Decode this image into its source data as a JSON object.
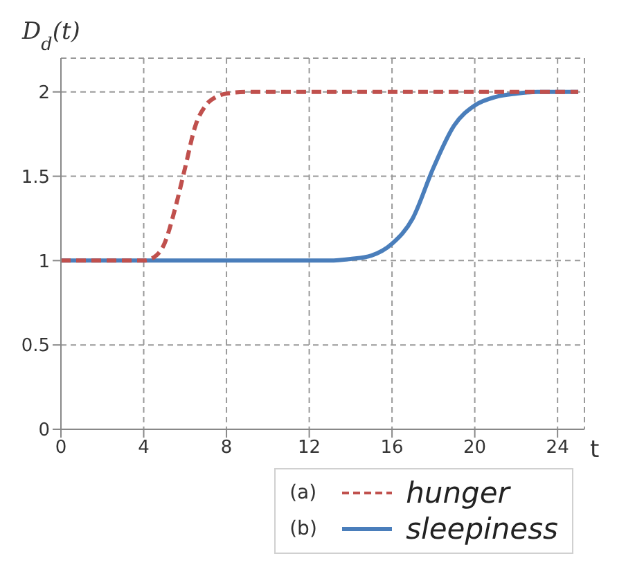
{
  "chart_data": {
    "type": "line",
    "xlabel": "t",
    "ylabel": "D$_{d}$(t)",
    "xlim": [
      0,
      25.3
    ],
    "xticks": [
      0,
      4,
      8,
      12,
      16,
      20,
      24
    ],
    "ylim": [
      0,
      2.2
    ],
    "yticks": [
      0,
      0.5,
      1,
      1.5,
      2
    ],
    "grid": true,
    "annotations": [
      "(a)",
      "(b)"
    ],
    "legend": "bottom right",
    "marker": "none",
    "series": [
      {
        "name": "hunger",
        "color": "#c0504d",
        "line_style": "dashed",
        "x": [
          0,
          4,
          4.5,
          5,
          5.5,
          6,
          6.5,
          7,
          7.5,
          8,
          9,
          10,
          25
        ],
        "values": [
          1,
          1,
          1.02,
          1.1,
          1.3,
          1.55,
          1.8,
          1.92,
          1.97,
          1.99,
          2,
          2,
          2
        ]
      },
      {
        "name": "sleepiness",
        "color": "#4a7ebb",
        "line_style": "solid",
        "x": [
          0,
          12,
          13,
          14,
          15,
          16,
          17,
          18,
          19,
          20,
          21,
          22,
          23,
          24,
          25
        ],
        "values": [
          1,
          1,
          1,
          1.01,
          1.03,
          1.1,
          1.25,
          1.55,
          1.8,
          1.92,
          1.97,
          1.99,
          2,
          2,
          2
        ]
      }
    ]
  }
}
